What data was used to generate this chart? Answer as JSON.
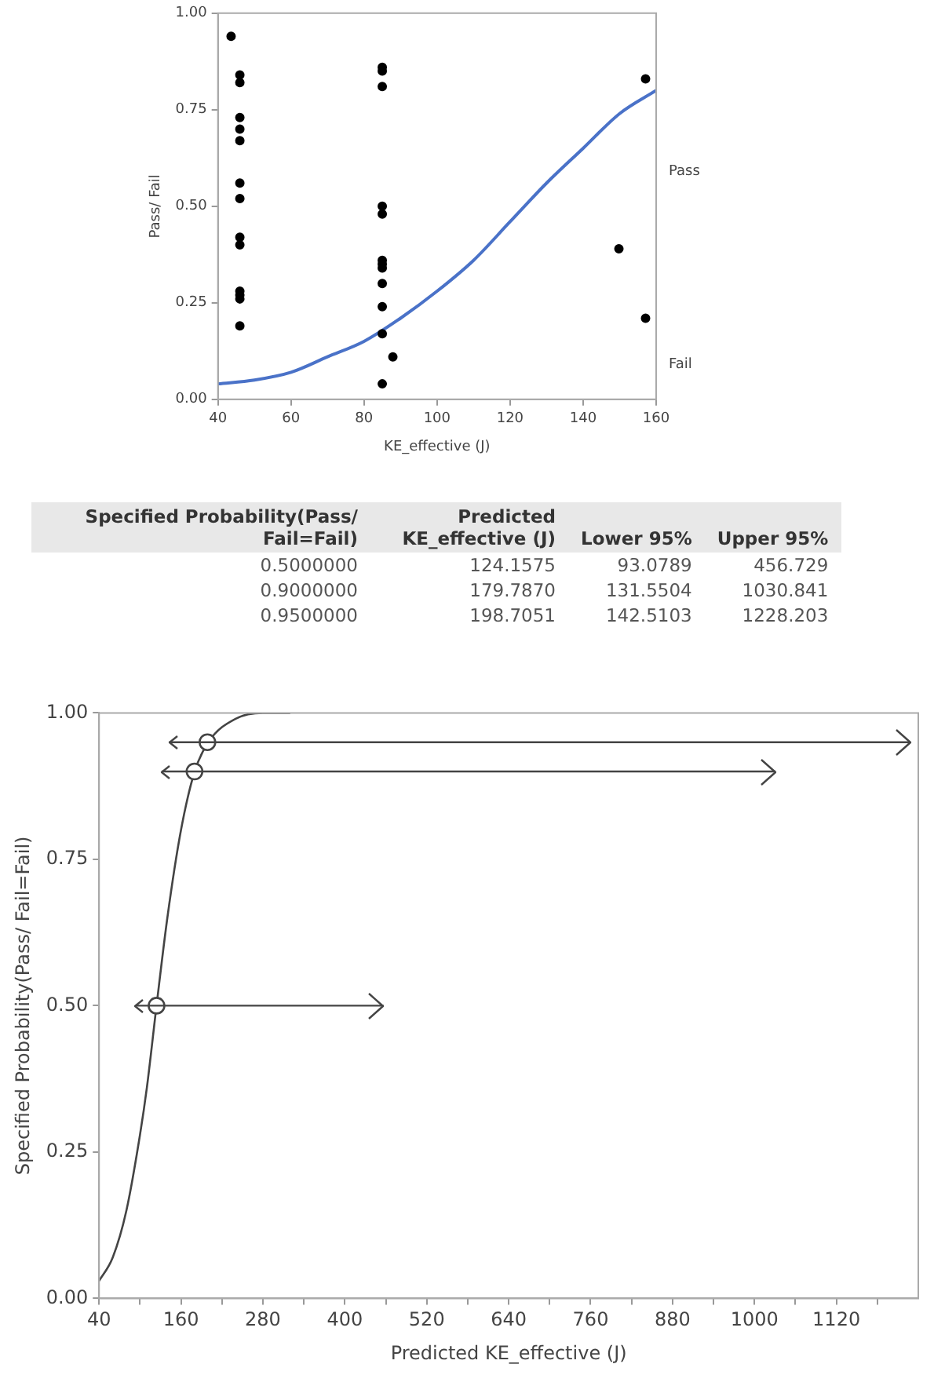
{
  "chart_data": [
    {
      "type": "scatter",
      "xlabel": "KE_effective (J)",
      "ylabel": "Pass/ Fail",
      "xlim": [
        40,
        160
      ],
      "xticks": [
        40,
        60,
        80,
        100,
        120,
        140,
        160
      ],
      "ylim": [
        0,
        1
      ],
      "yticks": [
        {
          "value": 0,
          "label": "0.00"
        },
        {
          "value": 0.25,
          "label": "0.25"
        },
        {
          "value": 0.5,
          "label": "0.50"
        },
        {
          "value": 0.75,
          "label": "0.75"
        },
        {
          "value": 1,
          "label": "1.00"
        }
      ],
      "annotations": [
        "Pass",
        "Fail"
      ],
      "series": [
        {
          "type": "scatter",
          "color": "#000000",
          "marker": "circle",
          "x": [
            43.6,
            46,
            46,
            46,
            46,
            46,
            46,
            46,
            46,
            46,
            46,
            46,
            46,
            46,
            85,
            85,
            85,
            85,
            85,
            85,
            85,
            85,
            85,
            85,
            85,
            85,
            87.9,
            149.8,
            157.1,
            157.1
          ],
          "values": [
            0.94,
            0.84,
            0.82,
            0.73,
            0.7,
            0.67,
            0.56,
            0.52,
            0.42,
            0.4,
            0.28,
            0.27,
            0.26,
            0.19,
            0.86,
            0.85,
            0.81,
            0.5,
            0.48,
            0.36,
            0.35,
            0.34,
            0.3,
            0.24,
            0.17,
            0.04,
            0.11,
            0.39,
            0.83,
            0.21
          ]
        },
        {
          "type": "line",
          "color": "#4a72c8",
          "x": [
            40,
            50,
            60,
            70,
            80,
            90,
            100,
            110,
            120,
            130,
            140,
            150,
            160
          ],
          "values": [
            0.04,
            0.05,
            0.07,
            0.11,
            0.15,
            0.21,
            0.28,
            0.36,
            0.46,
            0.56,
            0.65,
            0.74,
            0.8
          ]
        }
      ]
    },
    {
      "type": "other",
      "xlabel": "Specified Probability(Pass/ Fail=Fail)",
      "categories": [
        "0.5000000",
        "0.9000000",
        "0.9500000"
      ],
      "series": [
        {
          "name": "Predicted KE_effective (J)",
          "values": [
            124.1575,
            179.787,
            198.7051
          ],
          "value_labels": [
            "124.1575",
            "179.7870",
            "198.7051"
          ]
        },
        {
          "name": "Lower 95%",
          "values": [
            93.0789,
            131.5504,
            142.5103
          ],
          "value_labels": [
            "93.0789",
            "131.5504",
            "142.5103"
          ]
        },
        {
          "name": "Upper 95%",
          "values": [
            456.729,
            1030.841,
            1228.203
          ],
          "value_labels": [
            "456.729",
            "1030.841",
            "1228.203"
          ]
        }
      ]
    },
    {
      "type": "scatter",
      "xlabel": "Predicted KE_effective (J)",
      "ylabel": "Specified Probability(Pass/ Fail=Fail)",
      "xlim": [
        40,
        1240
      ],
      "xticks": [
        40,
        {
          "value": 100,
          "label": null
        },
        160,
        {
          "value": 220,
          "label": null
        },
        280,
        {
          "value": 340,
          "label": null
        },
        400,
        {
          "value": 460,
          "label": null
        },
        520,
        {
          "value": 580,
          "label": null
        },
        640,
        {
          "value": 700,
          "label": null
        },
        760,
        {
          "value": 820,
          "label": null
        },
        880,
        {
          "value": 940,
          "label": null
        },
        1000,
        {
          "value": 1060,
          "label": null
        },
        1120,
        {
          "value": 1180,
          "label": null
        }
      ],
      "ylim": [
        0,
        1
      ],
      "yticks": [
        {
          "value": 0,
          "label": "0.00"
        },
        {
          "value": 0.25,
          "label": "0.25"
        },
        {
          "value": 0.5,
          "label": "0.50"
        },
        {
          "value": 0.75,
          "label": "0.75"
        },
        {
          "value": 1,
          "label": "1.00"
        }
      ],
      "series": [
        {
          "type": "line",
          "color": "#444444",
          "x": [
            40,
            60,
            80,
            100,
            110,
            124.16,
            140,
            160,
            180,
            200,
            240,
            280,
            320
          ],
          "values": [
            0.03,
            0.07,
            0.15,
            0.28,
            0.36,
            0.5,
            0.65,
            0.8,
            0.9,
            0.95,
            0.99,
            1,
            1
          ]
        },
        {
          "type": "scatter",
          "color": "#444444",
          "marker": "circle",
          "x": [
            124.1575,
            179.787,
            198.7051
          ],
          "values": [
            0.5,
            0.9,
            0.95
          ],
          "xerrors": [
            [
              93.0789,
              456.729
            ],
            [
              131.5504,
              1030.841
            ],
            [
              142.5103,
              1228.203
            ]
          ]
        }
      ]
    }
  ]
}
